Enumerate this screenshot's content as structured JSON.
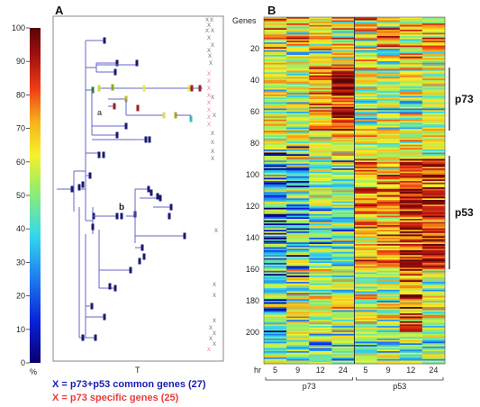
{
  "panels": {
    "a_label": "A",
    "b_label": "B"
  },
  "colorbar": {
    "ticks": [
      "100",
      "90",
      "80",
      "70",
      "60",
      "50",
      "40",
      "30",
      "20",
      "10",
      "0"
    ],
    "unit": "%"
  },
  "tree": {
    "x_label": "T",
    "node_a": "a",
    "node_b": "b",
    "common_mark": "X",
    "specific_mark": "X"
  },
  "legend": {
    "common": "X  =  p73+p53 common genes (27)",
    "specific": "X  =  p73 specific genes (25)"
  },
  "chart_data": {
    "type": "heatmap",
    "ylabel": "Genes",
    "y_ticks": [
      "20",
      "40",
      "60",
      "80",
      "100",
      "120",
      "140",
      "160",
      "180",
      "200"
    ],
    "x_unit": "hr",
    "columns": [
      "5",
      "9",
      "12",
      "24",
      "5",
      "9",
      "12",
      "24"
    ],
    "groups": [
      {
        "name": "p73",
        "columns": [
          "5",
          "9",
          "12",
          "24"
        ]
      },
      {
        "name": "p53",
        "columns": [
          "5",
          "9",
          "12",
          "24"
        ]
      }
    ],
    "brackets": [
      {
        "label": "p73",
        "gene_range": [
          32,
          72
        ]
      },
      {
        "label": "p53",
        "gene_range": [
          88,
          160
        ]
      }
    ],
    "n_genes": 220
  },
  "colors": {
    "ramp": [
      "#08006e",
      "#0a1fd9",
      "#1e7af0",
      "#33d8ee",
      "#98ee6a",
      "#f4f22c",
      "#f7b21a",
      "#ef3b14",
      "#a00f0f",
      "#5a0505"
    ],
    "common": "#1a1ab8",
    "specific": "#e83a3a",
    "tree_line": "#6666cc"
  }
}
